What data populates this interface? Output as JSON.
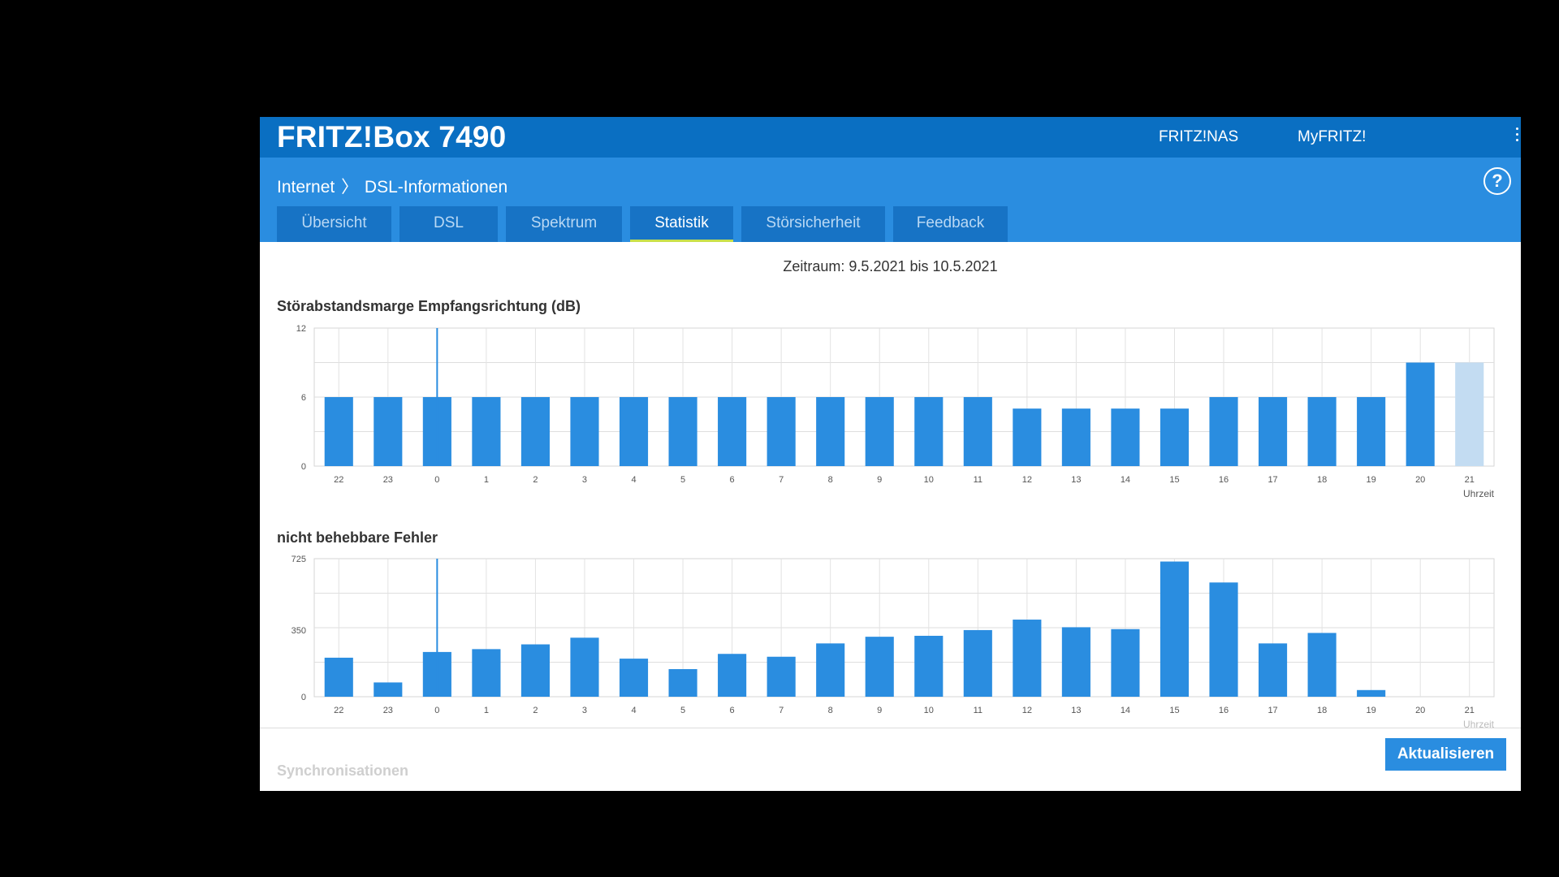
{
  "header": {
    "brand": "FRITZ!Box 7490",
    "links": [
      "FRITZ!NAS",
      "MyFRITZ!"
    ]
  },
  "breadcrumb": {
    "parent": "Internet",
    "separator": "〉",
    "current": "DSL-Informationen"
  },
  "help_icon": "?",
  "tabs": [
    {
      "label": "Übersicht",
      "active": false
    },
    {
      "label": "DSL",
      "active": false
    },
    {
      "label": "Spektrum",
      "active": false
    },
    {
      "label": "Statistik",
      "active": true
    },
    {
      "label": "Störsicherheit",
      "active": false
    },
    {
      "label": "Feedback",
      "active": false
    }
  ],
  "zeitraum": "Zeitraum: 9.5.2021 bis 10.5.2021",
  "chart_data": [
    {
      "type": "bar",
      "title": "Störabstandsmarge Empfangsrichtung (dB)",
      "xlabel": "Uhrzeit",
      "ylabel": "",
      "yticks": [
        0,
        6,
        12
      ],
      "ylim": [
        0,
        12
      ],
      "grid": true,
      "categories": [
        "22",
        "23",
        "0",
        "1",
        "2",
        "3",
        "4",
        "5",
        "6",
        "7",
        "8",
        "9",
        "10",
        "11",
        "12",
        "13",
        "14",
        "15",
        "16",
        "17",
        "18",
        "19",
        "20",
        "21"
      ],
      "values": [
        6,
        6,
        6,
        6,
        6,
        6,
        6,
        6,
        6,
        6,
        6,
        6,
        6,
        6,
        5,
        5,
        5,
        5,
        6,
        6,
        6,
        6,
        9,
        9
      ],
      "highlight_index": 23,
      "marker_category": "0",
      "bar_color": "#2a8de0",
      "highlight_color": "#c3dcf2"
    },
    {
      "type": "bar",
      "title": "nicht behebbare Fehler",
      "xlabel": "Uhrzeit",
      "ylabel": "",
      "yticks": [
        0,
        350,
        725
      ],
      "ylim": [
        0,
        725
      ],
      "grid": true,
      "categories": [
        "22",
        "23",
        "0",
        "1",
        "2",
        "3",
        "4",
        "5",
        "6",
        "7",
        "8",
        "9",
        "10",
        "11",
        "12",
        "13",
        "14",
        "15",
        "16",
        "17",
        "18",
        "19",
        "20",
        "21"
      ],
      "values": [
        205,
        75,
        235,
        250,
        275,
        310,
        200,
        145,
        225,
        210,
        280,
        315,
        320,
        350,
        405,
        365,
        355,
        710,
        600,
        280,
        335,
        35,
        0,
        0
      ],
      "marker_category": "0",
      "bar_color": "#2a8de0"
    }
  ],
  "footer": {
    "next_section": "Synchronisationen",
    "refresh_label": "Aktualisieren"
  }
}
